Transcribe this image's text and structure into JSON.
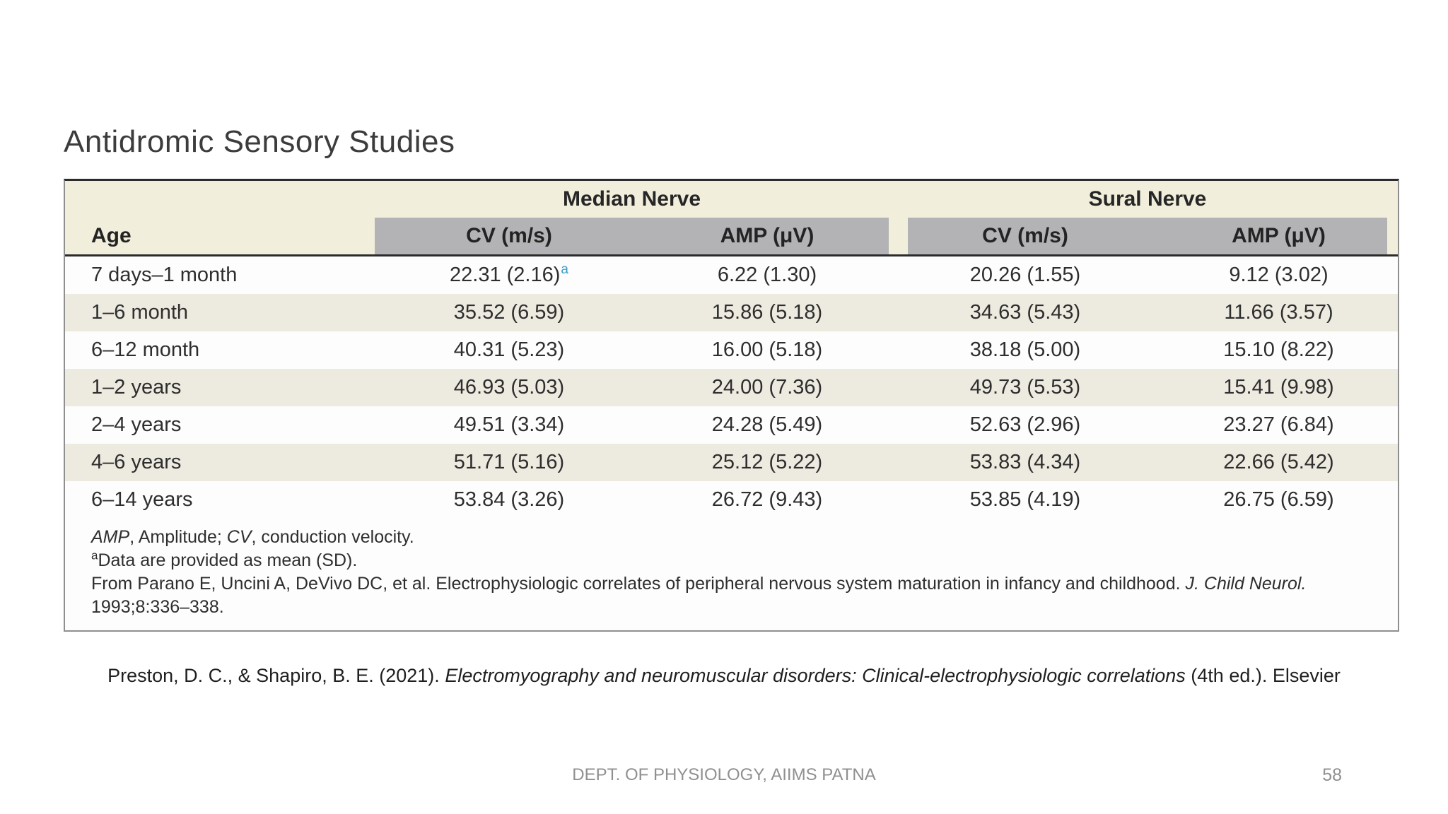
{
  "slide": {
    "title": "Antidromic Sensory Studies",
    "citation_pre": "Preston, D. C., & Shapiro, B. E. (2021). ",
    "citation_italic": "Electromyography and neuromuscular disorders: Clinical-electrophysiologic correlations",
    "citation_post": " (4th ed.). Elsevier",
    "footer_text": "DEPT. OF PHYSIOLOGY, AIIMS PATNA",
    "page_number": "58"
  },
  "table": {
    "group_headers": {
      "median": "Median Nerve",
      "sural": "Sural Nerve"
    },
    "col_headers": {
      "age": "Age",
      "median_cv": "CV (m/s)",
      "median_amp": "AMP (μV)",
      "sural_cv": "CV (m/s)",
      "sural_amp": "AMP (μV)"
    },
    "rows": [
      {
        "age": "7 days–1 month",
        "median_cv": "22.31 (2.16)",
        "median_cv_note": "a",
        "median_amp": "6.22 (1.30)",
        "sural_cv": "20.26 (1.55)",
        "sural_amp": "9.12 (3.02)"
      },
      {
        "age": "1–6 month",
        "median_cv": "35.52 (6.59)",
        "median_amp": "15.86 (5.18)",
        "sural_cv": "34.63 (5.43)",
        "sural_amp": "11.66 (3.57)"
      },
      {
        "age": "6–12 month",
        "median_cv": "40.31 (5.23)",
        "median_amp": "16.00 (5.18)",
        "sural_cv": "38.18 (5.00)",
        "sural_amp": "15.10 (8.22)"
      },
      {
        "age": "1–2 years",
        "median_cv": "46.93 (5.03)",
        "median_amp": "24.00 (7.36)",
        "sural_cv": "49.73 (5.53)",
        "sural_amp": "15.41 (9.98)"
      },
      {
        "age": "2–4 years",
        "median_cv": "49.51 (3.34)",
        "median_amp": "24.28 (5.49)",
        "sural_cv": "52.63 (2.96)",
        "sural_amp": "23.27 (6.84)"
      },
      {
        "age": "4–6 years",
        "median_cv": "51.71 (5.16)",
        "median_amp": "25.12 (5.22)",
        "sural_cv": "53.83 (4.34)",
        "sural_amp": "22.66 (5.42)"
      },
      {
        "age": "6–14 years",
        "median_cv": "53.84 (3.26)",
        "median_amp": "26.72 (9.43)",
        "sural_cv": "53.85 (4.19)",
        "sural_amp": "26.75 (6.59)"
      }
    ],
    "footnotes": {
      "abbrev_amp": "AMP",
      "abbrev_amp_text": ", Amplitude; ",
      "abbrev_cv": "CV",
      "abbrev_cv_text": ", conduction velocity.",
      "note_sup": "a",
      "note_text": "Data are provided as mean (SD).",
      "source_text": "From Parano E, Uncini A, DeVivo DC, et al. Electrophysiologic correlates of peripheral nervous system maturation in infancy and childhood. ",
      "source_journal": "J. Child Neurol.",
      "source_ref": "1993;8:336–338."
    },
    "colors": {
      "header_cream": "#f1eedb",
      "subheader_gray": "#b3b3b5",
      "row_alt": "#edeae0",
      "footnote_marker_blue": "#3b9ec6"
    }
  }
}
